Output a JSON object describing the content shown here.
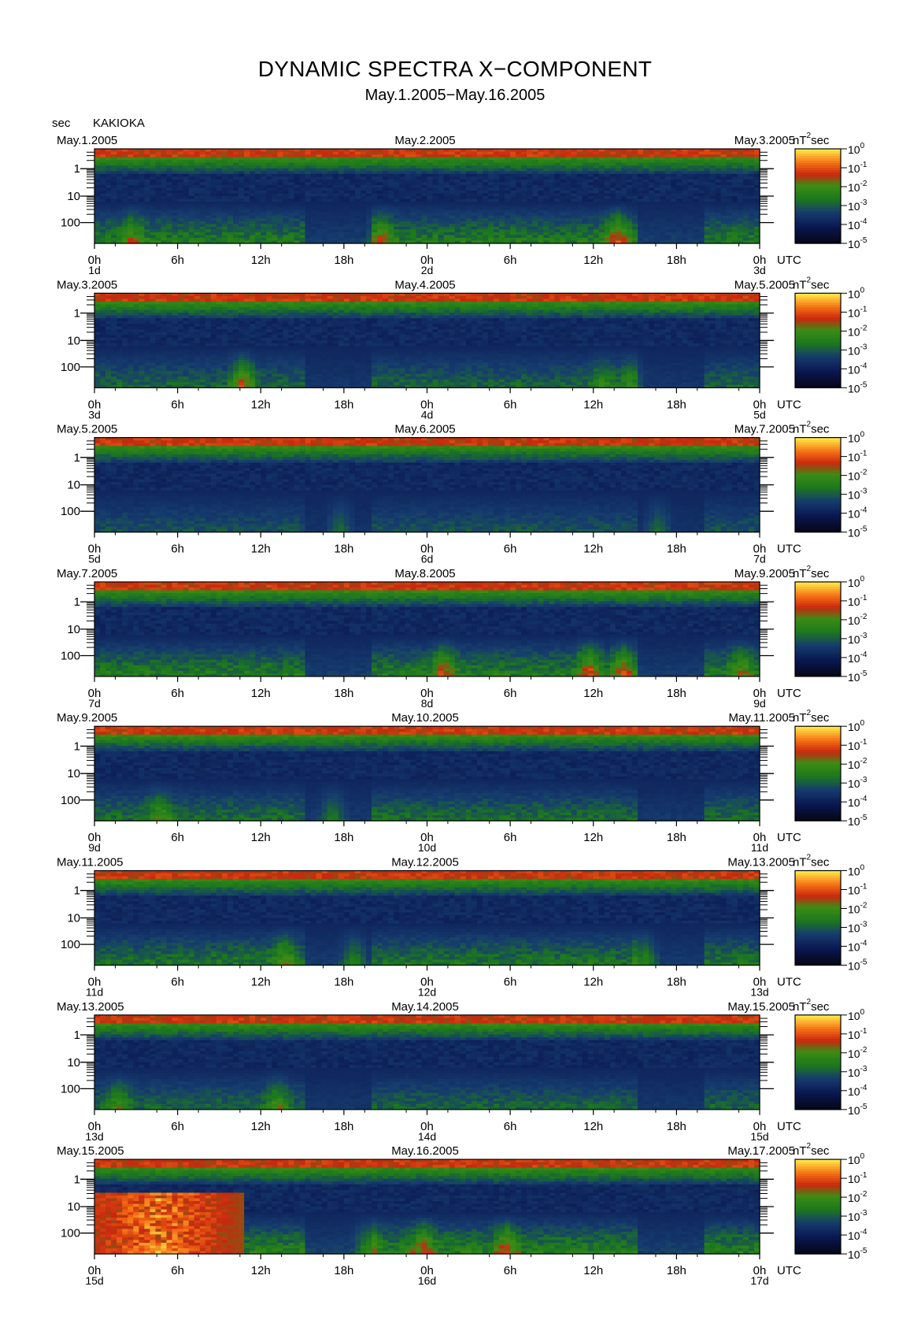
{
  "title": "DYNAMIC SPECTRA X−COMPONENT",
  "subtitle": "May.1.2005−May.16.2005",
  "station": "KAKIOKA",
  "y_unit": "sec",
  "colorbar_unit": "nT",
  "colorbar_unit_sup": "2",
  "colorbar_unit_tail": "sec",
  "x_unit": "UTC",
  "colors": {
    "background_dark": "#050510",
    "band_low": "#0c1a5a",
    "band_green": "#1f8a1f",
    "band_red": "#d42a10",
    "band_yellow": "#ffe040"
  },
  "chart_data": [
    {
      "type": "heatmap",
      "date_left": "May.1.2005",
      "date_mid": "May.2.2005",
      "date_right": "May.3.2005",
      "day_left": "1d",
      "day_mid": "2d",
      "day_right": "3d",
      "activity": 0.55,
      "events": [
        {
          "hour": 37.5,
          "strength": 0.8
        },
        {
          "hour": 20.5,
          "strength": 0.6
        },
        {
          "hour": 2.5,
          "strength": 0.5
        }
      ]
    },
    {
      "type": "heatmap",
      "date_left": "May.3.2005",
      "date_mid": "May.4.2005",
      "date_right": "May.5.2005",
      "day_left": "3d",
      "day_mid": "4d",
      "day_right": "5d",
      "activity": 0.4,
      "events": [
        {
          "hour": 10.5,
          "strength": 0.85
        },
        {
          "hour": 36.5,
          "strength": 0.4
        },
        {
          "hour": 38.5,
          "strength": 0.4
        }
      ]
    },
    {
      "type": "heatmap",
      "date_left": "May.5.2005",
      "date_mid": "May.6.2005",
      "date_right": "May.7.2005",
      "day_left": "5d",
      "day_mid": "6d",
      "day_right": "7d",
      "activity": 0.3,
      "events": [
        {
          "hour": 17.5,
          "strength": 0.4
        },
        {
          "hour": 40.5,
          "strength": 0.4
        }
      ]
    },
    {
      "type": "heatmap",
      "date_left": "May.7.2005",
      "date_mid": "May.8.2005",
      "date_right": "May.9.2005",
      "day_left": "7d",
      "day_mid": "8d",
      "day_right": "9d",
      "activity": 0.55,
      "events": [
        {
          "hour": 25,
          "strength": 0.7
        },
        {
          "hour": 35.5,
          "strength": 0.8
        },
        {
          "hour": 38,
          "strength": 0.7
        },
        {
          "hour": 46.5,
          "strength": 0.5
        }
      ]
    },
    {
      "type": "heatmap",
      "date_left": "May.9.2005",
      "date_mid": "May.10.2005",
      "date_right": "May.11.2005",
      "day_left": "9d",
      "day_mid": "10d",
      "day_right": "11d",
      "activity": 0.45,
      "events": [
        {
          "hour": 4.5,
          "strength": 0.5
        },
        {
          "hour": 17,
          "strength": 0.45
        }
      ]
    },
    {
      "type": "heatmap",
      "date_left": "May.11.2005",
      "date_mid": "May.12.2005",
      "date_right": "May.13.2005",
      "day_left": "11d",
      "day_mid": "12d",
      "day_right": "13d",
      "activity": 0.5,
      "events": [
        {
          "hour": 13.5,
          "strength": 0.55
        },
        {
          "hour": 18.5,
          "strength": 0.5
        },
        {
          "hour": 39.5,
          "strength": 0.6
        }
      ]
    },
    {
      "type": "heatmap",
      "date_left": "May.13.2005",
      "date_mid": "May.14.2005",
      "date_right": "May.15.2005",
      "day_left": "13d",
      "day_mid": "14d",
      "day_right": "15d",
      "activity": 0.4,
      "events": [
        {
          "hour": 1.5,
          "strength": 0.5
        },
        {
          "hour": 13,
          "strength": 0.55
        }
      ]
    },
    {
      "type": "heatmap",
      "date_left": "May.15.2005",
      "date_mid": "May.16.2005",
      "date_right": "May.17.2005",
      "day_left": "15d",
      "day_mid": "16d",
      "day_right": "17d",
      "activity": 0.6,
      "events": [
        {
          "hour": 4.5,
          "strength": 1.0,
          "width": 6
        },
        {
          "hour": 19.5,
          "strength": 0.6
        },
        {
          "hour": 23.5,
          "strength": 0.65
        },
        {
          "hour": 29.5,
          "strength": 0.7
        }
      ]
    }
  ],
  "y_ticks": [
    "1",
    "10",
    "100"
  ],
  "x_ticks": [
    "0h",
    "6h",
    "12h",
    "18h",
    "0h",
    "6h",
    "12h",
    "18h",
    "0h"
  ],
  "colorbar_ticks": [
    {
      "base": "10",
      "exp": "0"
    },
    {
      "base": "10",
      "exp": "-1"
    },
    {
      "base": "10",
      "exp": "-2"
    },
    {
      "base": "10",
      "exp": "-3"
    },
    {
      "base": "10",
      "exp": "-4"
    },
    {
      "base": "10",
      "exp": "-5"
    }
  ]
}
